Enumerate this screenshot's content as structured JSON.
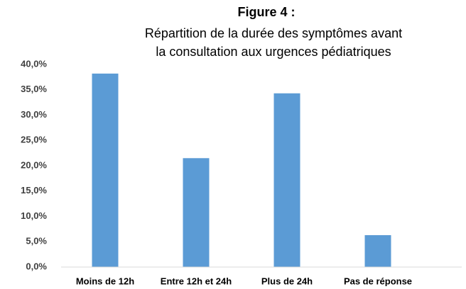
{
  "chart_data": {
    "type": "bar",
    "title": "Figure 4 :",
    "subtitle": [
      "Répartition de la durée des symptômes avant",
      "la consultation aux urgences pédiatriques"
    ],
    "categories": [
      "Moins de 12h",
      "Entre 12h et 24h",
      "Plus de 24h",
      "Pas de réponse"
    ],
    "values": [
      38.2,
      21.5,
      34.3,
      6.3
    ],
    "color": "#5b9bd5",
    "ylim": [
      0,
      40
    ],
    "yticks": [
      {
        "value": 0,
        "label": "0,0%"
      },
      {
        "value": 5,
        "label": "5,0%"
      },
      {
        "value": 10,
        "label": "10,0%"
      },
      {
        "value": 15,
        "label": "15,0%"
      },
      {
        "value": 20,
        "label": "20,0%"
      },
      {
        "value": 25,
        "label": "25,0%"
      },
      {
        "value": 30,
        "label": "30,0%"
      },
      {
        "value": 35,
        "label": "35,0%"
      },
      {
        "value": 40,
        "label": "40,0%"
      }
    ],
    "grid": false
  }
}
